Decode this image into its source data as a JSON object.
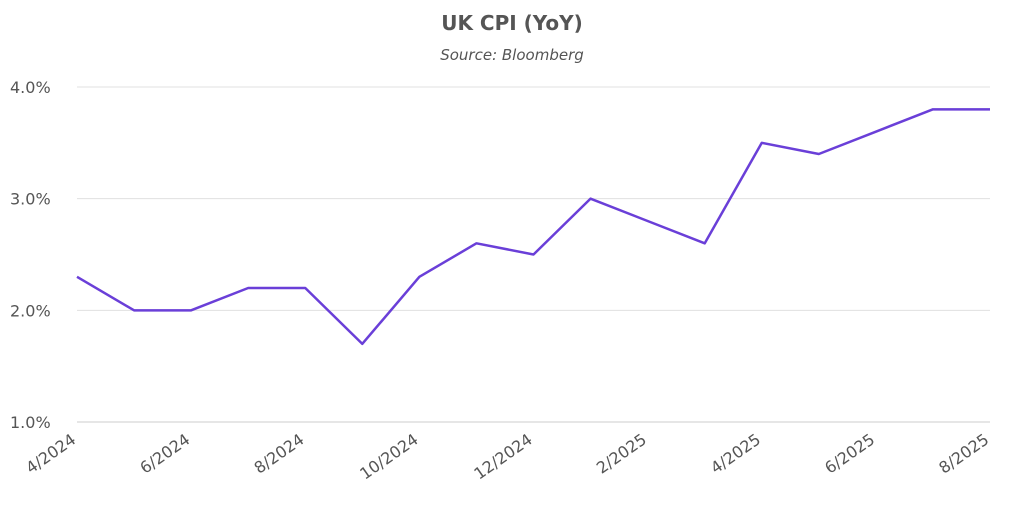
{
  "chart_data": {
    "type": "line",
    "title": "UK CPI (YoY)",
    "subtitle": "Source: Bloomberg",
    "categories": [
      "4/2024",
      null,
      "6/2024",
      null,
      "8/2024",
      null,
      "10/2024",
      null,
      "12/2024",
      null,
      "2/2025",
      null,
      "4/2025",
      null,
      "6/2025",
      null,
      "8/2025"
    ],
    "series": [
      {
        "name": "UK CPI (YoY)",
        "color": "#6a3fd8",
        "values": [
          2.3,
          2.0,
          2.0,
          2.2,
          2.2,
          1.7,
          2.3,
          2.6,
          2.5,
          3.0,
          2.8,
          2.6,
          3.5,
          3.4,
          3.6,
          3.8,
          3.8
        ]
      }
    ],
    "ylim": [
      1,
      4
    ],
    "yticks": [
      {
        "value": 1,
        "label": "1.0%"
      },
      {
        "value": 2,
        "label": "2.0%"
      },
      {
        "value": 3,
        "label": "3.0%"
      },
      {
        "value": 4,
        "label": "4.0%"
      }
    ],
    "grid": true
  }
}
